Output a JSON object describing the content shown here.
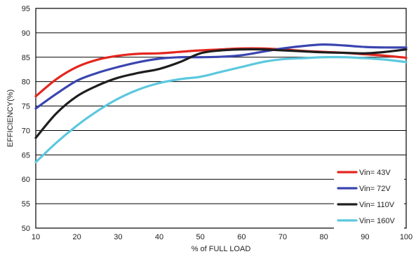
{
  "chart_data": {
    "type": "line",
    "xlabel": "% of FULL LOAD",
    "ylabel": "EFFICIENCY(%)",
    "xlim": [
      10,
      100
    ],
    "ylim": [
      50,
      95
    ],
    "xticks": [
      10,
      20,
      30,
      40,
      50,
      60,
      70,
      80,
      90,
      100
    ],
    "yticks": [
      50,
      55,
      60,
      65,
      70,
      75,
      80,
      85,
      90,
      95
    ],
    "grid": "horizontal",
    "legend_position": "bottom-right",
    "series": [
      {
        "name": "Vin= 43V",
        "color": "#e3261f",
        "x": [
          10,
          15,
          20,
          25,
          30,
          35,
          40,
          45,
          50,
          55,
          60,
          65,
          70,
          75,
          80,
          85,
          90,
          95,
          100
        ],
        "y": [
          77,
          80.5,
          83,
          84.5,
          85.3,
          85.7,
          85.8,
          86.1,
          86.4,
          86.6,
          86.8,
          86.8,
          86.6,
          86.3,
          86.1,
          85.9,
          85.6,
          85.3,
          84.9
        ]
      },
      {
        "name": "Vin= 72V",
        "color": "#3a45b0",
        "x": [
          10,
          15,
          20,
          25,
          30,
          35,
          40,
          45,
          50,
          55,
          60,
          65,
          70,
          75,
          80,
          85,
          90,
          95,
          100
        ],
        "y": [
          74.5,
          77.5,
          80.2,
          81.8,
          83,
          84,
          84.7,
          85,
          85,
          85.1,
          85.4,
          86.1,
          86.8,
          87.3,
          87.6,
          87.4,
          87.1,
          87,
          87
        ]
      },
      {
        "name": "Vin= 110V",
        "color": "#1e1e1e",
        "x": [
          10,
          15,
          20,
          25,
          30,
          35,
          40,
          45,
          50,
          55,
          60,
          65,
          70,
          75,
          80,
          85,
          90,
          95,
          100
        ],
        "y": [
          68.5,
          73.5,
          77,
          79.2,
          80.8,
          81.8,
          82.6,
          84,
          85.8,
          86.4,
          86.6,
          86.6,
          86.4,
          86.2,
          86,
          85.9,
          85.8,
          86.1,
          86.6
        ]
      },
      {
        "name": "Vin= 160V",
        "color": "#5bc8de",
        "x": [
          10,
          15,
          20,
          25,
          30,
          35,
          40,
          45,
          50,
          55,
          60,
          65,
          70,
          75,
          80,
          85,
          90,
          95,
          100
        ],
        "y": [
          63.5,
          67.5,
          71,
          74,
          76.5,
          78.4,
          79.7,
          80.5,
          81,
          82,
          83,
          84,
          84.6,
          84.8,
          85,
          85,
          84.8,
          84.5,
          84
        ]
      }
    ]
  }
}
